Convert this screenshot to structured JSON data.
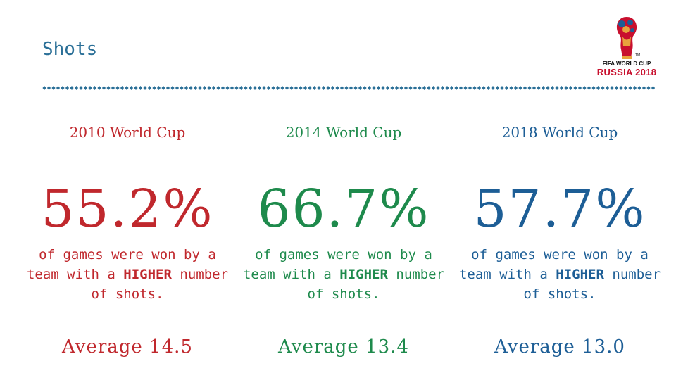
{
  "title": "Shots",
  "logo": {
    "line1": "FIFA WORLD CUP",
    "line2": "RUSSIA 2018",
    "tm": "TM"
  },
  "columns": [
    {
      "year_label": "2010 World Cup",
      "percent": "55.2%",
      "desc_prefix": "of games were won by a team with a",
      "desc_emphasis": "HIGHER",
      "desc_suffix": "number of shots.",
      "average": "Average 14.5",
      "color": "#c0282d"
    },
    {
      "year_label": "2014 World Cup",
      "percent": "66.7%",
      "desc_prefix": "of games were won by a team with a",
      "desc_emphasis": "HIGHER",
      "desc_suffix": "number of shots.",
      "average": "Average 13.4",
      "color": "#1e8a4c"
    },
    {
      "year_label": "2018 World Cup",
      "percent": "57.7%",
      "desc_prefix": "of games were won by a team with a",
      "desc_emphasis": "HIGHER",
      "desc_suffix": "number of shots.",
      "average": "Average 13.0",
      "color": "#1d5e96"
    }
  ]
}
